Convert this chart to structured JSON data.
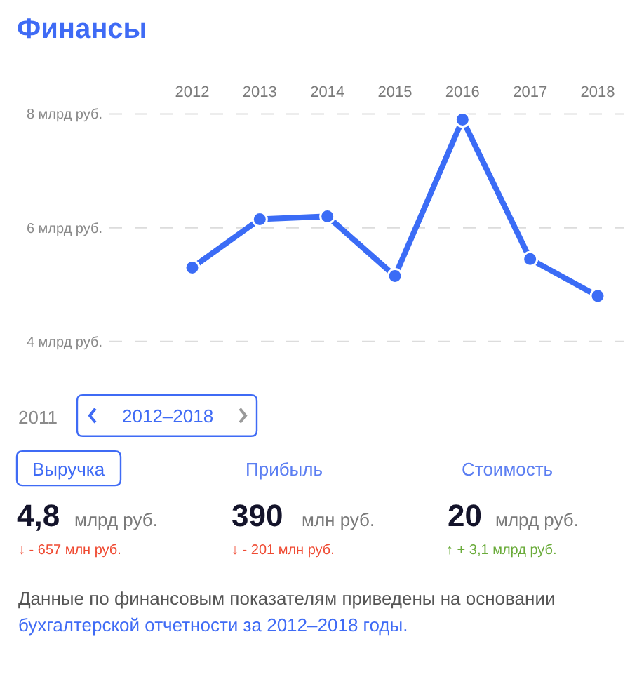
{
  "chart_data": [
    {
      "type": "line",
      "title": "Финансы",
      "categories": [
        "2012",
        "2013",
        "2014",
        "2015",
        "2016",
        "2017",
        "2018"
      ],
      "series": [
        {
          "color": "#3b6cf6",
          "values": [
            5.3,
            6.15,
            6.2,
            5.15,
            7.9,
            5.45,
            4.8
          ]
        }
      ],
      "ylim": [
        4,
        8
      ],
      "yticks": [
        {
          "value": 4,
          "label": "4 млрд руб."
        },
        {
          "value": 6,
          "label": "6 млрд руб."
        },
        {
          "value": 8,
          "label": "8 млрд руб."
        }
      ],
      "grid": "y",
      "marker": "circle",
      "line_style": "solid"
    },
    {
      "type": "other",
      "annotations": [
        "2011",
        "2012–2018",
        "Выручка",
        "Прибыль",
        "Стоимость",
        "4,8",
        "млрд руб.",
        "390",
        "млн руб.",
        "20",
        "млрд руб.",
        "↓ - 657 млн руб.",
        "↓ - 201 млн руб.",
        "↑ + 3,1 млрд руб.",
        "Данные по финансовым показателям приведены на основании",
        "бухгалтерской отчетности за 2012–2018 годы."
      ]
    }
  ]
}
